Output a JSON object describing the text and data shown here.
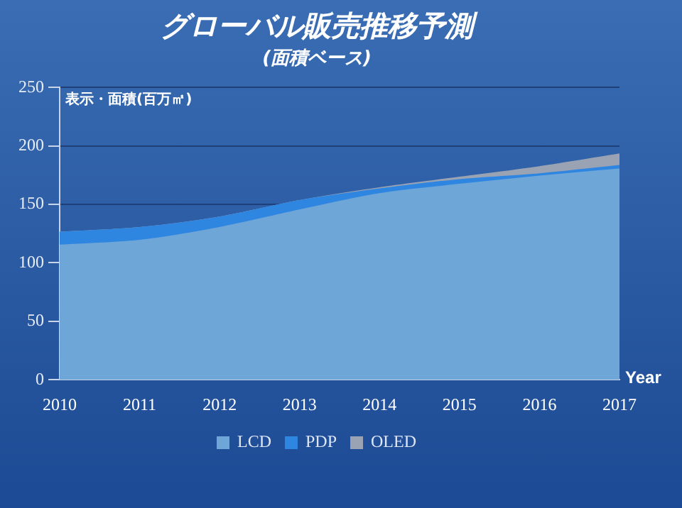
{
  "chart_data": {
    "type": "area",
    "title": "グローバル販売推移予測",
    "subtitle": "(面積ベース)",
    "ylabel": "表示・面積(百万㎡)",
    "xlabel": "Year",
    "categories": [
      "2010",
      "2011",
      "2012",
      "2013",
      "2014",
      "2015",
      "2016",
      "2017"
    ],
    "series": [
      {
        "name": "LCD",
        "color": "#6fa6d8",
        "values": [
          115,
          119,
          130,
          145,
          159,
          167,
          174,
          180
        ]
      },
      {
        "name": "PDP",
        "color": "#2f86e0",
        "values": [
          11,
          11,
          9,
          8,
          4,
          4,
          2,
          3
        ]
      },
      {
        "name": "OLED",
        "color": "#9aa3b3",
        "values": [
          0,
          0,
          0,
          0,
          1,
          2,
          6,
          10
        ]
      }
    ],
    "stacked": true,
    "ylim": [
      0,
      250
    ],
    "yticks": [
      0,
      50,
      100,
      150,
      200,
      250
    ],
    "grid": "y",
    "legend": "bottom"
  }
}
